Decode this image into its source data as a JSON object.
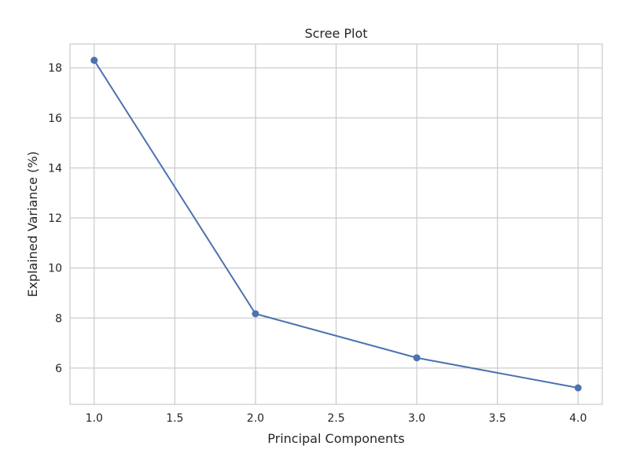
{
  "chart_data": {
    "type": "line",
    "title": "Scree Plot",
    "xlabel": "Principal Components",
    "ylabel": "Explained Variance (%)",
    "x": [
      1,
      2,
      3,
      4
    ],
    "series": [
      {
        "values": [
          18.3,
          8.17,
          6.41,
          5.21
        ]
      }
    ],
    "xlim": [
      0.85,
      4.15
    ],
    "ylim": [
      4.55,
      18.95
    ],
    "xticks": [
      1.0,
      1.5,
      2.0,
      2.5,
      3.0,
      3.5,
      4.0
    ],
    "xtick_labels": [
      "1.0",
      "1.5",
      "2.0",
      "2.5",
      "3.0",
      "3.5",
      "4.0"
    ],
    "yticks": [
      6,
      8,
      10,
      12,
      14,
      16,
      18
    ],
    "ytick_labels": [
      "6",
      "8",
      "10",
      "12",
      "14",
      "16",
      "18"
    ],
    "grid": true,
    "line_color": "#4c72b0",
    "marker": "circle"
  }
}
